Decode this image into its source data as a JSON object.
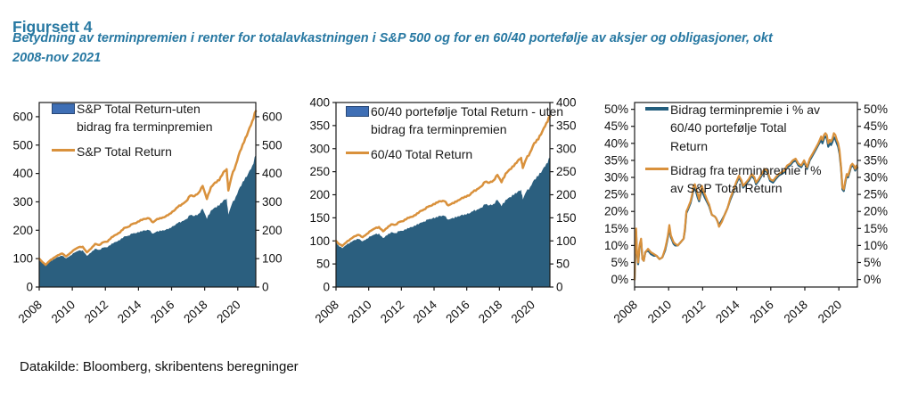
{
  "header": {
    "title": "Figursett 4",
    "subtitle": "Betydning av terminpremien i renter for totalavkastningen i S&P 500 og for en 60/40 portefølje av aksjer og obligasjoner, okt 2008-nov 2021"
  },
  "footer": {
    "source": "Datakilde: Bloomberg, skribentens beregninger"
  },
  "colors": {
    "heading": "#2778A2",
    "area_blue": "#2B5F7F",
    "swatch_blue": "#3F6FB5",
    "orange": "#D9913C",
    "teal_line": "#235E7D",
    "axis": "#1a1a1a"
  },
  "chart_data": [
    {
      "name": "sp500-chart",
      "type": "area",
      "title": "",
      "x": [
        2008.79,
        2008.92,
        2009.17,
        2009.42,
        2009.67,
        2009.92,
        2010.17,
        2010.42,
        2010.67,
        2010.92,
        2011.17,
        2011.42,
        2011.67,
        2011.92,
        2012.17,
        2012.42,
        2012.67,
        2012.92,
        2013.17,
        2013.42,
        2013.67,
        2013.92,
        2014.17,
        2014.42,
        2014.67,
        2014.92,
        2015.17,
        2015.42,
        2015.67,
        2015.92,
        2016.17,
        2016.42,
        2016.67,
        2016.92,
        2017.17,
        2017.42,
        2017.67,
        2017.92,
        2018.17,
        2018.42,
        2018.67,
        2018.92,
        2019.17,
        2019.42,
        2019.67,
        2019.92,
        2020.12,
        2020.22,
        2020.42,
        2020.67,
        2020.92,
        2021.17,
        2021.42,
        2021.67,
        2021.88
      ],
      "series": [
        {
          "name": "S&P Total Return-uten bidrag fra terminpremien",
          "type": "area",
          "color": "#2B5F7F",
          "jitter_pct": 1.3,
          "values": [
            97,
            88,
            76,
            88,
            98,
            106,
            110,
            101,
            111,
            121,
            128,
            129,
            110,
            121,
            135,
            131,
            139,
            140,
            153,
            159,
            165,
            178,
            181,
            188,
            190,
            197,
            199,
            200,
            188,
            197,
            197,
            201,
            208,
            215,
            225,
            232,
            239,
            253,
            250,
            258,
            276,
            240,
            270,
            281,
            286,
            305,
            312,
            255,
            290,
            318,
            352,
            374,
            400,
            428,
            465
          ]
        },
        {
          "name": "S&P Total Return",
          "type": "line",
          "color": "#D9913C",
          "jitter_pct": 0.7,
          "values": [
            100,
            92,
            78,
            92,
            103,
            112,
            118,
            108,
            120,
            132,
            140,
            142,
            122,
            135,
            152,
            148,
            158,
            160,
            176,
            184,
            192,
            208,
            212,
            222,
            226,
            236,
            240,
            242,
            228,
            240,
            242,
            248,
            258,
            268,
            282,
            292,
            302,
            322,
            320,
            332,
            356,
            310,
            352,
            368,
            376,
            404,
            415,
            340,
            390,
            430,
            478,
            510,
            548,
            585,
            620
          ]
        }
      ],
      "ylim": [
        0,
        650
      ],
      "yticks": [
        0,
        100,
        200,
        300,
        400,
        500,
        600
      ],
      "ytick_suffix": "",
      "xtick_labels": [
        "2008",
        "2010",
        "2012",
        "2014",
        "2016",
        "2018",
        "2020"
      ],
      "grid": false,
      "legend_position": "top-left"
    },
    {
      "name": "portfolio-6040-chart",
      "type": "area",
      "title": "",
      "x": [
        2008.79,
        2008.92,
        2009.17,
        2009.42,
        2009.67,
        2009.92,
        2010.17,
        2010.42,
        2010.67,
        2010.92,
        2011.17,
        2011.42,
        2011.67,
        2011.92,
        2012.17,
        2012.42,
        2012.67,
        2012.92,
        2013.17,
        2013.42,
        2013.67,
        2013.92,
        2014.17,
        2014.42,
        2014.67,
        2014.92,
        2015.17,
        2015.42,
        2015.67,
        2015.92,
        2016.17,
        2016.42,
        2016.67,
        2016.92,
        2017.17,
        2017.42,
        2017.67,
        2017.92,
        2018.17,
        2018.42,
        2018.67,
        2018.92,
        2019.17,
        2019.42,
        2019.67,
        2019.92,
        2020.12,
        2020.22,
        2020.42,
        2020.67,
        2020.92,
        2021.17,
        2021.42,
        2021.67,
        2021.88
      ],
      "series": [
        {
          "name": "60/40 portefølje Total Return - uten bidrag fra terminpremien",
          "type": "area",
          "color": "#2B5F7F",
          "jitter_pct": 1.3,
          "values": [
            97,
            91,
            84,
            91,
            97,
            102,
            104,
            99,
            105,
            110,
            114,
            116,
            106,
            112,
            119,
            117,
            121,
            122,
            128,
            130,
            133,
            139,
            142,
            146,
            148,
            152,
            154,
            154,
            146,
            150,
            151,
            155,
            158,
            159,
            164,
            168,
            172,
            179,
            177,
            180,
            189,
            175,
            189,
            195,
            199,
            207,
            211,
            190,
            206,
            217,
            233,
            240,
            254,
            268,
            280
          ]
        },
        {
          "name": "60/40 Total Return",
          "type": "line",
          "color": "#D9913C",
          "jitter_pct": 0.7,
          "values": [
            100,
            95,
            89,
            97,
            104,
            110,
            113,
            108,
            115,
            122,
            127,
            130,
            121,
            128,
            136,
            135,
            141,
            143,
            150,
            152,
            156,
            164,
            168,
            174,
            177,
            183,
            186,
            186,
            177,
            182,
            185,
            191,
            196,
            198,
            206,
            212,
            218,
            228,
            226,
            231,
            243,
            227,
            246,
            255,
            262,
            274,
            280,
            258,
            277,
            292,
            312,
            320,
            338,
            356,
            370
          ]
        }
      ],
      "ylim": [
        0,
        400
      ],
      "yticks": [
        0,
        50,
        100,
        150,
        200,
        250,
        300,
        350,
        400
      ],
      "ytick_suffix": "",
      "xtick_labels": [
        "2008",
        "2010",
        "2012",
        "2014",
        "2016",
        "2018",
        "2020"
      ],
      "grid": false,
      "legend_position": "top-left"
    },
    {
      "name": "contribution-chart",
      "type": "line",
      "title": "",
      "x": [
        2008.79,
        2008.83,
        2008.88,
        2008.92,
        2009.0,
        2009.08,
        2009.17,
        2009.25,
        2009.33,
        2009.42,
        2009.58,
        2009.75,
        2009.92,
        2010.08,
        2010.25,
        2010.42,
        2010.58,
        2010.67,
        2010.75,
        2010.83,
        2010.92,
        2011.08,
        2011.17,
        2011.33,
        2011.5,
        2011.67,
        2011.75,
        2011.83,
        2011.92,
        2012.08,
        2012.17,
        2012.25,
        2012.33,
        2012.42,
        2012.5,
        2012.58,
        2012.67,
        2012.75,
        2012.83,
        2012.92,
        2013.08,
        2013.17,
        2013.33,
        2013.5,
        2013.58,
        2013.67,
        2013.75,
        2013.92,
        2014.08,
        2014.25,
        2014.42,
        2014.58,
        2014.75,
        2014.92,
        2015.08,
        2015.17,
        2015.33,
        2015.5,
        2015.67,
        2015.83,
        2015.92,
        2016.08,
        2016.25,
        2016.42,
        2016.58,
        2016.75,
        2016.92,
        2017.08,
        2017.25,
        2017.42,
        2017.58,
        2017.75,
        2017.92,
        2018.08,
        2018.25,
        2018.42,
        2018.58,
        2018.75,
        2018.92,
        2019.08,
        2019.25,
        2019.42,
        2019.58,
        2019.75,
        2019.83,
        2019.92,
        2020.0,
        2020.08,
        2020.17,
        2020.25,
        2020.33,
        2020.42,
        2020.5,
        2020.58,
        2020.67,
        2020.75,
        2020.83,
        2020.92,
        2021.0,
        2021.08,
        2021.17,
        2021.25,
        2021.33,
        2021.42,
        2021.5,
        2021.58,
        2021.67,
        2021.75,
        2021.83,
        2021.88
      ],
      "series": [
        {
          "name": "Bidrag terminpremie i % av 60/40 portefølje Total Return",
          "type": "line",
          "color": "#235E7D",
          "jitter_pct": 0,
          "values": [
            0,
            7.5,
            14,
            8.5,
            4.5,
            9.5,
            11.5,
            6,
            5.5,
            8,
            8.5,
            7.5,
            7,
            7,
            6,
            6.5,
            8.5,
            10.5,
            12.5,
            15,
            12.5,
            10.5,
            10,
            10,
            11,
            12,
            14.5,
            19.5,
            20.5,
            22.5,
            24.5,
            26.5,
            27,
            25.5,
            24,
            23,
            25,
            26.5,
            25,
            24,
            22.5,
            21.5,
            19,
            18.5,
            18,
            17,
            16,
            17.5,
            19,
            21,
            23.5,
            25.5,
            28,
            30,
            28.5,
            27,
            28,
            29,
            30.5,
            29.5,
            28,
            29,
            30.5,
            32,
            31.5,
            29,
            28.5,
            29.5,
            30.5,
            31,
            31.5,
            33,
            33.5,
            34.5,
            35,
            33.5,
            33,
            34.5,
            32.5,
            35,
            36.5,
            38,
            39.5,
            41,
            40,
            41.5,
            42,
            41.5,
            39,
            40,
            39.5,
            40.5,
            41.8,
            41.2,
            40,
            39,
            37,
            32.5,
            26.5,
            26,
            28.5,
            30.5,
            30,
            31.5,
            33,
            33.5,
            33,
            32,
            33,
            32.8
          ]
        },
        {
          "name": "Bidrag fra terminpremie i % av S&P Total Return",
          "type": "line",
          "color": "#D9913C",
          "jitter_pct": 0,
          "values": [
            0,
            8,
            15,
            9,
            5,
            10,
            12,
            6,
            5.5,
            8,
            9,
            8,
            7.5,
            7,
            6,
            6.5,
            9,
            11,
            13,
            16,
            13,
            11,
            10.5,
            10,
            11,
            12,
            15,
            20,
            21,
            23,
            25,
            27.5,
            28,
            26.5,
            25,
            23.5,
            26,
            27.5,
            26,
            25,
            23,
            22,
            19,
            18.5,
            18,
            17,
            15.5,
            17,
            19,
            21,
            24,
            26,
            28.5,
            30.5,
            29,
            27.5,
            28.5,
            29.5,
            31,
            30,
            28.5,
            29.5,
            31,
            32.5,
            32,
            29.5,
            29,
            30,
            31,
            31.5,
            32,
            33.5,
            34,
            35,
            35.5,
            34,
            33.5,
            35,
            33,
            35.5,
            37,
            38.5,
            40,
            42,
            41,
            42.5,
            43,
            42.5,
            40,
            41,
            40.5,
            41.5,
            43,
            42.5,
            41,
            40,
            38,
            33,
            27,
            26.5,
            29,
            31,
            30.5,
            32,
            33.5,
            34,
            33.5,
            32.5,
            33.5,
            33
          ]
        }
      ],
      "ylim": [
        -2.2,
        52
      ],
      "yticks": [
        0,
        5,
        10,
        15,
        20,
        25,
        30,
        35,
        40,
        45,
        50
      ],
      "ytick_suffix": "%",
      "xtick_labels": [
        "2008",
        "2010",
        "2012",
        "2014",
        "2016",
        "2018",
        "2020"
      ],
      "grid": false,
      "legend_position": "top-left"
    }
  ]
}
